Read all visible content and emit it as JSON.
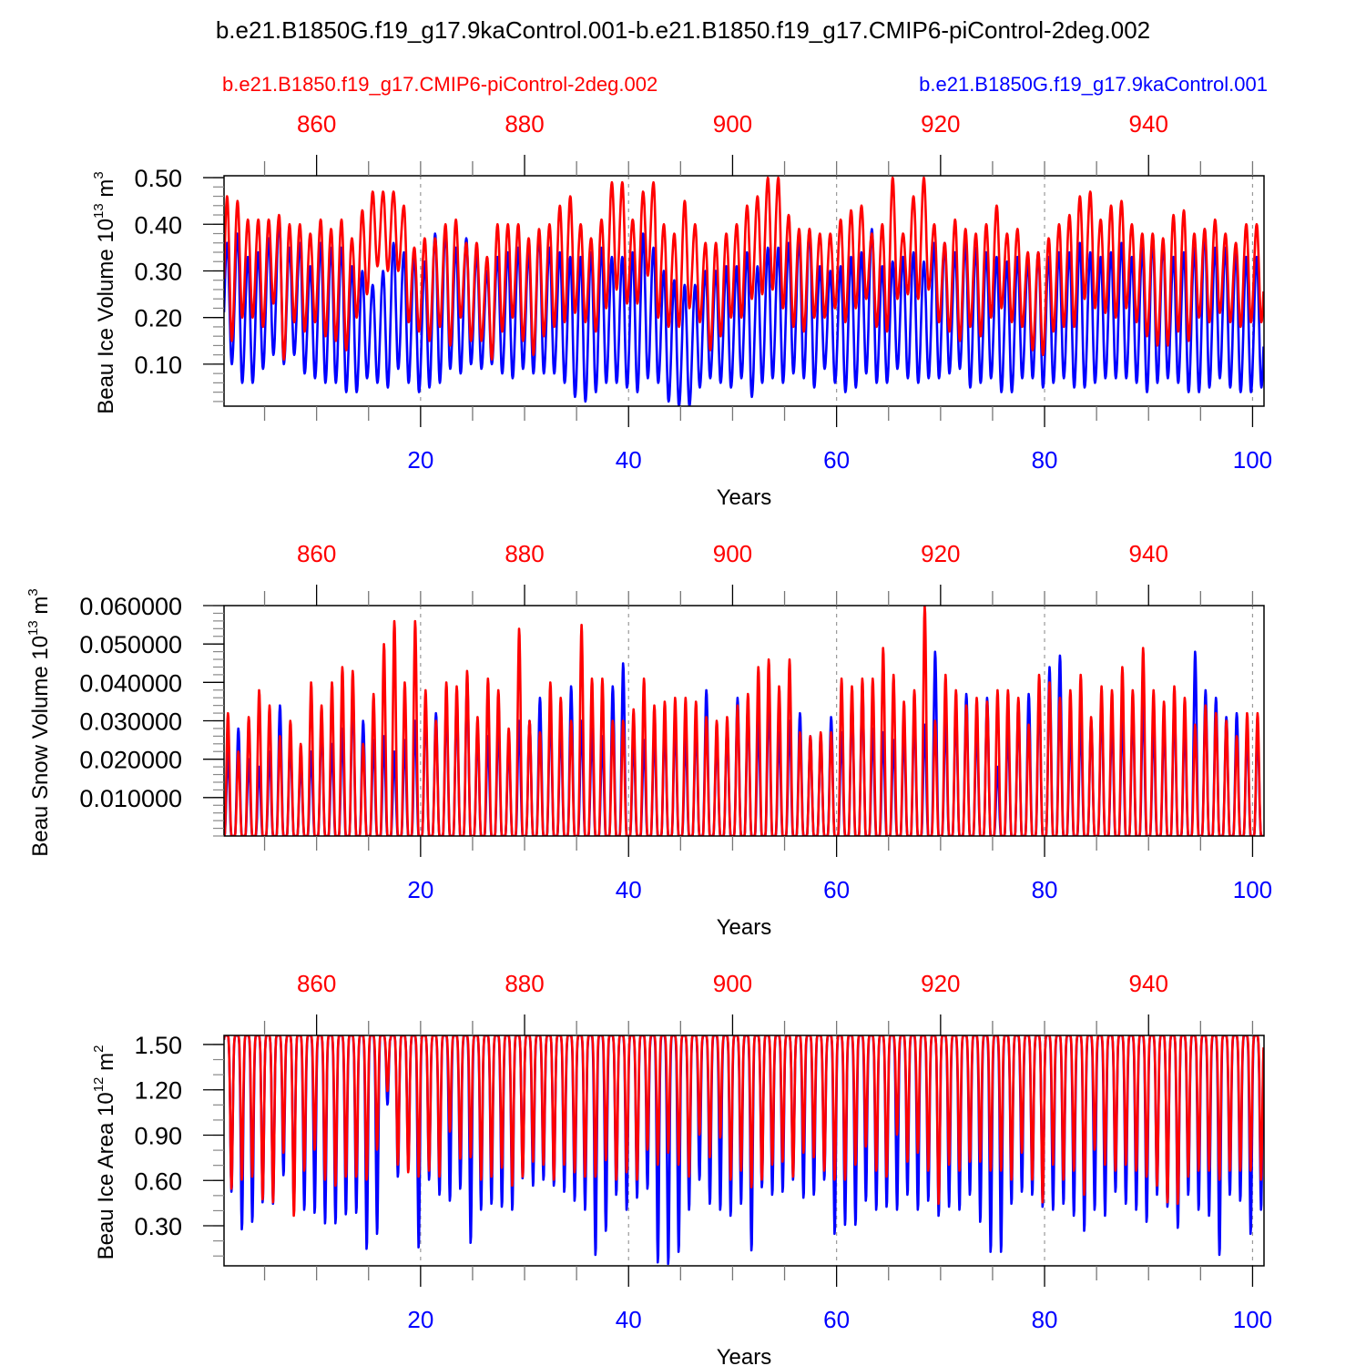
{
  "title": "b.e21.B1850G.f19_g17.9kaControl.001-b.e21.B1850.f19_g17.CMIP6-piControl-2deg.002",
  "legend": {
    "red": "b.e21.B1850.f19_g17.CMIP6-piControl-2deg.002",
    "blue": "b.e21.B1850G.f19_g17.9kaControl.001"
  },
  "colors": {
    "red": "#ff0000",
    "blue": "#0000ff"
  },
  "chart_data": [
    {
      "type": "line",
      "ylabel": "Beau Ice Volume 10",
      "ylabel_exp": "13",
      "ylabel_unit": " m",
      "ylabel_unit_exp": "3",
      "xlabel": "Years",
      "xlim": [
        1.1,
        101.1
      ],
      "x_ticks": [
        "20",
        "40",
        "60",
        "80",
        "100"
      ],
      "top_x_ticks": [
        "860",
        "880",
        "900",
        "920",
        "940"
      ],
      "top_x_offset": 850,
      "ylim": [
        0.01,
        0.504
      ],
      "y_ticks": [
        "0.10",
        "0.20",
        "0.30",
        "0.40",
        "0.50"
      ],
      "grid": "dashed vertical at bottom-axis major ticks",
      "series": [
        {
          "name": "b.e21.B1850.f19_g17.CMIP6-piControl-2deg.002",
          "color": "#ff0000",
          "annual_max": [
            0.46,
            0.45,
            0.41,
            0.41,
            0.41,
            0.42,
            0.4,
            0.4,
            0.38,
            0.41,
            0.39,
            0.41,
            0.37,
            0.43,
            0.47,
            0.47,
            0.47,
            0.44,
            0.35,
            0.37,
            0.37,
            0.4,
            0.41,
            0.36,
            0.36,
            0.33,
            0.4,
            0.4,
            0.4,
            0.37,
            0.39,
            0.4,
            0.44,
            0.46,
            0.4,
            0.37,
            0.41,
            0.49,
            0.49,
            0.41,
            0.47,
            0.49,
            0.4,
            0.38,
            0.45,
            0.4,
            0.36,
            0.36,
            0.38,
            0.4,
            0.44,
            0.46,
            0.5,
            0.5,
            0.42,
            0.39,
            0.39,
            0.38,
            0.38,
            0.41,
            0.43,
            0.44,
            0.38,
            0.4,
            0.5,
            0.38,
            0.46,
            0.5,
            0.4,
            0.36,
            0.41,
            0.39,
            0.38,
            0.4,
            0.44,
            0.38,
            0.39,
            0.34,
            0.34,
            0.37,
            0.4,
            0.42,
            0.46,
            0.47,
            0.41,
            0.44,
            0.45,
            0.4,
            0.38,
            0.38,
            0.37,
            0.42,
            0.43,
            0.38,
            0.39,
            0.41,
            0.38,
            0.36,
            0.4,
            0.4
          ],
          "annual_min": [
            0.15,
            0.2,
            0.2,
            0.18,
            0.23,
            0.11,
            0.19,
            0.17,
            0.19,
            0.16,
            0.15,
            0.13,
            0.2,
            0.25,
            0.31,
            0.3,
            0.3,
            0.19,
            0.17,
            0.15,
            0.18,
            0.14,
            0.2,
            0.15,
            0.15,
            0.11,
            0.17,
            0.2,
            0.15,
            0.12,
            0.16,
            0.18,
            0.19,
            0.21,
            0.19,
            0.17,
            0.22,
            0.26,
            0.23,
            0.23,
            0.29,
            0.2,
            0.18,
            0.18,
            0.22,
            0.19,
            0.13,
            0.16,
            0.2,
            0.2,
            0.24,
            0.25,
            0.26,
            0.22,
            0.18,
            0.17,
            0.2,
            0.2,
            0.22,
            0.19,
            0.22,
            0.24,
            0.18,
            0.17,
            0.24,
            0.25,
            0.24,
            0.26,
            0.19,
            0.17,
            0.15,
            0.18,
            0.16,
            0.2,
            0.22,
            0.19,
            0.18,
            0.13,
            0.12,
            0.17,
            0.18,
            0.18,
            0.24,
            0.22,
            0.21,
            0.2,
            0.22,
            0.19,
            0.16,
            0.14,
            0.14,
            0.17,
            0.15,
            0.2,
            0.19,
            0.21,
            0.19,
            0.18,
            0.19,
            0.19
          ]
        },
        {
          "name": "b.e21.B1850G.f19_g17.9kaControl.001",
          "color": "#0000ff",
          "annual_max": [
            0.36,
            0.38,
            0.33,
            0.34,
            0.37,
            0.41,
            0.35,
            0.36,
            0.31,
            0.36,
            0.35,
            0.35,
            0.31,
            0.3,
            0.27,
            0.3,
            0.36,
            0.34,
            0.34,
            0.32,
            0.38,
            0.39,
            0.35,
            0.37,
            0.34,
            0.3,
            0.33,
            0.34,
            0.35,
            0.34,
            0.38,
            0.35,
            0.34,
            0.33,
            0.33,
            0.34,
            0.35,
            0.33,
            0.33,
            0.34,
            0.38,
            0.35,
            0.3,
            0.28,
            0.27,
            0.27,
            0.3,
            0.3,
            0.31,
            0.31,
            0.34,
            0.31,
            0.35,
            0.35,
            0.36,
            0.37,
            0.39,
            0.31,
            0.3,
            0.31,
            0.33,
            0.34,
            0.39,
            0.31,
            0.32,
            0.33,
            0.34,
            0.32,
            0.36,
            0.36,
            0.34,
            0.36,
            0.35,
            0.34,
            0.33,
            0.32,
            0.33,
            0.32,
            0.34,
            0.33,
            0.34,
            0.34,
            0.36,
            0.34,
            0.33,
            0.34,
            0.36,
            0.33,
            0.35,
            0.37,
            0.36,
            0.33,
            0.34,
            0.35,
            0.39,
            0.35,
            0.35,
            0.34,
            0.33,
            0.33
          ],
          "annual_min": [
            0.1,
            0.06,
            0.06,
            0.09,
            0.12,
            0.1,
            0.12,
            0.08,
            0.07,
            0.06,
            0.06,
            0.04,
            0.04,
            0.07,
            0.06,
            0.05,
            0.09,
            0.06,
            0.04,
            0.05,
            0.06,
            0.09,
            0.08,
            0.1,
            0.09,
            0.1,
            0.08,
            0.07,
            0.09,
            0.08,
            0.08,
            0.08,
            0.06,
            0.03,
            0.02,
            0.04,
            0.06,
            0.06,
            0.05,
            0.04,
            0.07,
            0.06,
            0.02,
            0.01,
            0.01,
            0.05,
            0.07,
            0.06,
            0.05,
            0.07,
            0.03,
            0.06,
            0.07,
            0.06,
            0.08,
            0.07,
            0.05,
            0.09,
            0.06,
            0.04,
            0.05,
            0.08,
            0.06,
            0.06,
            0.09,
            0.07,
            0.06,
            0.07,
            0.07,
            0.08,
            0.09,
            0.05,
            0.06,
            0.07,
            0.04,
            0.04,
            0.07,
            0.07,
            0.05,
            0.06,
            0.07,
            0.05,
            0.05,
            0.06,
            0.07,
            0.07,
            0.07,
            0.06,
            0.04,
            0.06,
            0.07,
            0.06,
            0.04,
            0.04,
            0.05,
            0.07,
            0.05,
            0.04,
            0.04,
            0.05
          ]
        }
      ]
    },
    {
      "type": "line",
      "ylabel": "Beau Snow Volume 10",
      "ylabel_exp": "13",
      "ylabel_unit": " m",
      "ylabel_unit_exp": "3",
      "xlabel": "Years",
      "xlim": [
        1.1,
        101.1
      ],
      "x_ticks": [
        "20",
        "40",
        "60",
        "80",
        "100"
      ],
      "top_x_ticks": [
        "860",
        "880",
        "900",
        "920",
        "940"
      ],
      "top_x_offset": 850,
      "ylim": [
        0.0,
        0.06
      ],
      "y_ticks": [
        "0.010000",
        "0.020000",
        "0.030000",
        "0.040000",
        "0.050000",
        "0.060000"
      ],
      "grid": "dashed vertical at bottom-axis major ticks",
      "series": [
        {
          "name": "b.e21.B1850.f19_g17.CMIP6-piControl-2deg.002",
          "color": "#ff0000",
          "annual_min": 0.0,
          "annual_max": [
            0.032,
            0.022,
            0.031,
            0.038,
            0.034,
            0.026,
            0.03,
            0.024,
            0.04,
            0.034,
            0.04,
            0.044,
            0.043,
            0.024,
            0.037,
            0.05,
            0.056,
            0.04,
            0.056,
            0.038,
            0.03,
            0.04,
            0.039,
            0.043,
            0.031,
            0.041,
            0.038,
            0.028,
            0.054,
            0.03,
            0.027,
            0.04,
            0.036,
            0.03,
            0.055,
            0.041,
            0.041,
            0.03,
            0.03,
            0.033,
            0.041,
            0.034,
            0.035,
            0.036,
            0.036,
            0.035,
            0.031,
            0.03,
            0.031,
            0.034,
            0.037,
            0.044,
            0.046,
            0.039,
            0.046,
            0.027,
            0.026,
            0.027,
            0.027,
            0.041,
            0.039,
            0.041,
            0.041,
            0.049,
            0.042,
            0.035,
            0.038,
            0.06,
            0.03,
            0.042,
            0.038,
            0.034,
            0.036,
            0.035,
            0.038,
            0.038,
            0.036,
            0.029,
            0.042,
            0.04,
            0.036,
            0.038,
            0.042,
            0.031,
            0.039,
            0.038,
            0.044,
            0.038,
            0.049,
            0.038,
            0.035,
            0.039,
            0.036,
            0.029,
            0.034,
            0.032,
            0.03,
            0.026,
            0.032,
            0.032
          ]
        },
        {
          "name": "b.e21.B1850G.f19_g17.9kaControl.001",
          "color": "#0000ff",
          "annual_min": 0.0,
          "annual_max": [
            0.022,
            0.028,
            0.02,
            0.018,
            0.022,
            0.034,
            0.026,
            0.02,
            0.022,
            0.03,
            0.024,
            0.028,
            0.038,
            0.03,
            0.025,
            0.026,
            0.022,
            0.025,
            0.03,
            0.034,
            0.032,
            0.036,
            0.036,
            0.041,
            0.028,
            0.026,
            0.03,
            0.025,
            0.03,
            0.03,
            0.036,
            0.034,
            0.029,
            0.039,
            0.03,
            0.028,
            0.026,
            0.039,
            0.045,
            0.026,
            0.025,
            0.028,
            0.03,
            0.03,
            0.026,
            0.03,
            0.038,
            0.027,
            0.029,
            0.036,
            0.034,
            0.03,
            0.036,
            0.027,
            0.03,
            0.032,
            0.026,
            0.026,
            0.031,
            0.027,
            0.036,
            0.039,
            0.028,
            0.027,
            0.025,
            0.028,
            0.033,
            0.029,
            0.048,
            0.031,
            0.034,
            0.037,
            0.03,
            0.036,
            0.018,
            0.029,
            0.034,
            0.037,
            0.038,
            0.044,
            0.047,
            0.029,
            0.03,
            0.03,
            0.035,
            0.031,
            0.032,
            0.034,
            0.035,
            0.029,
            0.03,
            0.035,
            0.03,
            0.048,
            0.038,
            0.036,
            0.031,
            0.032,
            0.028,
            0.028
          ]
        }
      ]
    },
    {
      "type": "line",
      "ylabel": "Beau Ice Area 10",
      "ylabel_exp": "12",
      "ylabel_unit": " m",
      "ylabel_unit_exp": "2",
      "xlabel": "Years",
      "xlim": [
        1.1,
        101.1
      ],
      "x_ticks": [
        "20",
        "40",
        "60",
        "80",
        "100"
      ],
      "top_x_ticks": [
        "860",
        "880",
        "900",
        "920",
        "940"
      ],
      "top_x_offset": 850,
      "ylim": [
        0.035,
        1.56
      ],
      "y_ticks": [
        "0.30",
        "0.60",
        "0.90",
        "1.20",
        "1.50"
      ],
      "grid": "dashed vertical at bottom-axis major ticks",
      "series": [
        {
          "name": "b.e21.B1850.f19_g17.CMIP6-piControl-2deg.002",
          "color": "#ff0000",
          "annual_max": 1.56,
          "annual_min": [
            0.54,
            0.6,
            0.62,
            0.47,
            0.45,
            0.78,
            0.36,
            0.66,
            0.8,
            0.6,
            0.56,
            0.62,
            0.62,
            0.6,
            0.8,
            1.19,
            0.7,
            0.65,
            0.62,
            0.66,
            0.62,
            0.92,
            0.74,
            0.75,
            0.6,
            0.62,
            0.68,
            0.56,
            0.62,
            0.72,
            0.7,
            0.6,
            0.7,
            0.65,
            0.62,
            0.62,
            0.73,
            0.6,
            0.65,
            0.6,
            0.8,
            0.7,
            0.78,
            0.7,
            0.62,
            0.9,
            0.75,
            0.88,
            0.6,
            0.66,
            0.55,
            0.6,
            0.7,
            0.72,
            0.62,
            0.78,
            0.75,
            0.66,
            0.6,
            0.6,
            0.7,
            0.82,
            0.66,
            0.62,
            0.9,
            0.72,
            0.78,
            0.66,
            0.44,
            0.7,
            0.66,
            0.72,
            0.72,
            0.66,
            0.66,
            0.6,
            0.78,
            0.6,
            0.45,
            0.7,
            0.6,
            0.66,
            0.5,
            0.8,
            0.7,
            0.66,
            0.7,
            0.66,
            0.62,
            0.56,
            0.45,
            0.44,
            0.62,
            0.66,
            0.66,
            0.6,
            0.66,
            0.66,
            0.66,
            0.6
          ]
        },
        {
          "name": "b.e21.B1850G.f19_g17.9kaControl.001",
          "color": "#0000ff",
          "annual_max": 1.56,
          "annual_min": [
            0.52,
            0.27,
            0.32,
            0.45,
            0.44,
            0.63,
            0.43,
            0.4,
            0.38,
            0.31,
            0.31,
            0.37,
            0.38,
            0.14,
            0.24,
            1.1,
            0.62,
            0.66,
            0.15,
            0.6,
            0.5,
            0.46,
            0.54,
            0.18,
            0.4,
            0.44,
            0.42,
            0.4,
            0.61,
            0.56,
            0.6,
            0.56,
            0.52,
            0.46,
            0.4,
            0.1,
            0.26,
            0.5,
            0.4,
            0.48,
            0.54,
            0.05,
            0.04,
            0.12,
            0.4,
            0.6,
            0.44,
            0.4,
            0.36,
            0.44,
            0.13,
            0.55,
            0.5,
            0.52,
            0.6,
            0.48,
            0.5,
            0.6,
            0.24,
            0.3,
            0.3,
            0.46,
            0.4,
            0.42,
            0.4,
            0.5,
            0.4,
            0.46,
            0.36,
            0.42,
            0.4,
            0.5,
            0.32,
            0.12,
            0.12,
            0.44,
            0.52,
            0.5,
            0.42,
            0.4,
            0.44,
            0.36,
            0.26,
            0.4,
            0.36,
            0.52,
            0.44,
            0.4,
            0.32,
            0.5,
            0.42,
            0.28,
            0.5,
            0.4,
            0.36,
            0.1,
            0.5,
            0.46,
            0.24,
            0.4
          ]
        }
      ]
    }
  ]
}
